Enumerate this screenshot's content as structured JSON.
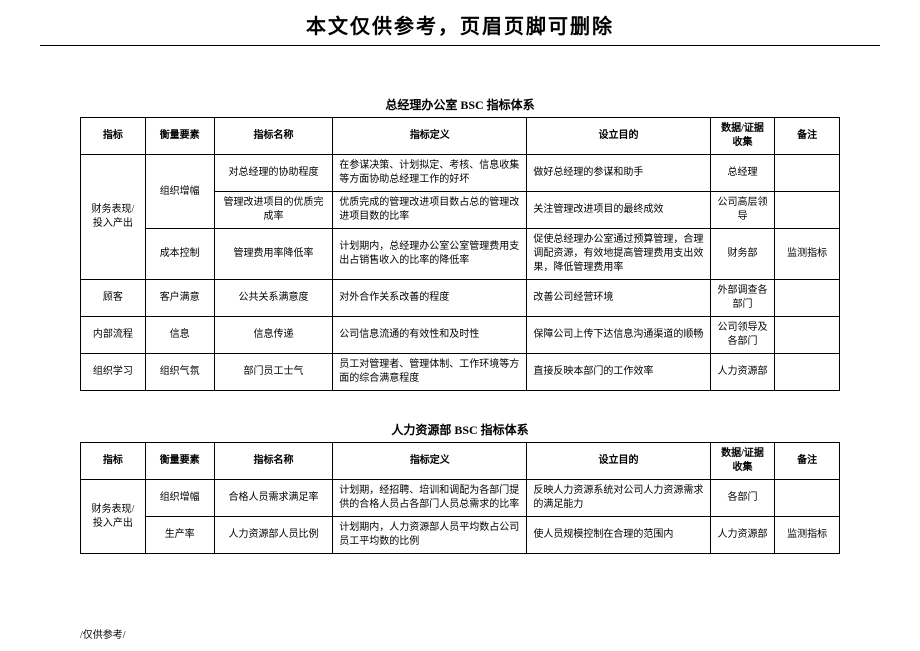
{
  "header": {
    "notice": "本文仅供参考，页眉页脚可删除"
  },
  "table1": {
    "title": "总经理办公室 BSC 指标体系",
    "columns": [
      "指标",
      "衡量要素",
      "指标名称",
      "指标定义",
      "设立目的",
      "数据/证据收集",
      "备注"
    ],
    "rows": [
      {
        "indicator": "财务表现/投入产出",
        "indicator_rowspan": 3,
        "factor": "组织增幅",
        "factor_rowspan": 2,
        "name": "对总经理的协助程度",
        "def": "在参谋决策、计划拟定、考核、信息收集等方面协助总经理工作的好坏",
        "purpose": "做好总经理的参谋和助手",
        "data": "总经理",
        "note": ""
      },
      {
        "name": "管理改进项目的优质完成率",
        "def": "优质完成的管理改进项目数占总的管理改进项目数的比率",
        "purpose": "关注管理改进项目的最终成效",
        "data": "公司高层领导",
        "note": ""
      },
      {
        "factor": "成本控制",
        "factor_rowspan": 1,
        "name": "管理费用率降低率",
        "def": "计划期内，总经理办公室公室管理费用支出占销售收入的比率的降低率",
        "purpose": "促使总经理办公室通过预算管理，合理调配资源，有效地提高管理费用支出效果，降低管理费用率",
        "data": "财务部",
        "note": "监测指标"
      },
      {
        "indicator": "顾客",
        "indicator_rowspan": 1,
        "factor": "客户满意",
        "factor_rowspan": 1,
        "name": "公共关系满意度",
        "def": "对外合作关系改善的程度",
        "purpose": "改善公司经营环境",
        "data": "外部调查各部门",
        "note": ""
      },
      {
        "indicator": "内部流程",
        "indicator_rowspan": 1,
        "factor": "信息",
        "factor_rowspan": 1,
        "name": "信息传递",
        "def": "公司信息流通的有效性和及时性",
        "purpose": "保障公司上传下达信息沟通渠道的顺畅",
        "data": "公司领导及各部门",
        "note": ""
      },
      {
        "indicator": "组织学习",
        "indicator_rowspan": 1,
        "factor": "组织气氛",
        "factor_rowspan": 1,
        "name": "部门员工士气",
        "def": "员工对管理者、管理体制、工作环境等方面的综合满意程度",
        "purpose": "直接反映本部门的工作效率",
        "data": "人力资源部",
        "note": ""
      }
    ]
  },
  "table2": {
    "title": "人力资源部 BSC 指标体系",
    "columns": [
      "指标",
      "衡量要素",
      "指标名称",
      "指标定义",
      "设立目的",
      "数据/证据收集",
      "备注"
    ],
    "rows": [
      {
        "indicator": "财务表现/投入产出",
        "indicator_rowspan": 2,
        "factor": "组织增幅",
        "factor_rowspan": 1,
        "name": "合格人员需求满足率",
        "def": "计划期，经招聘、培训和调配为各部门提供的合格人员占各部门人员总需求的比率",
        "purpose": "反映人力资源系统对公司人力资源需求的满足能力",
        "data": "各部门",
        "note": ""
      },
      {
        "factor": "生产率",
        "factor_rowspan": 1,
        "name": "人力资源部人员比例",
        "def": "计划期内，人力资源部人员平均数占公司员工平均数的比例",
        "purpose": "使人员规模控制在合理的范围内",
        "data": "人力资源部",
        "note": "监测指标"
      }
    ]
  },
  "footer": {
    "note": "/仅供参考/"
  }
}
